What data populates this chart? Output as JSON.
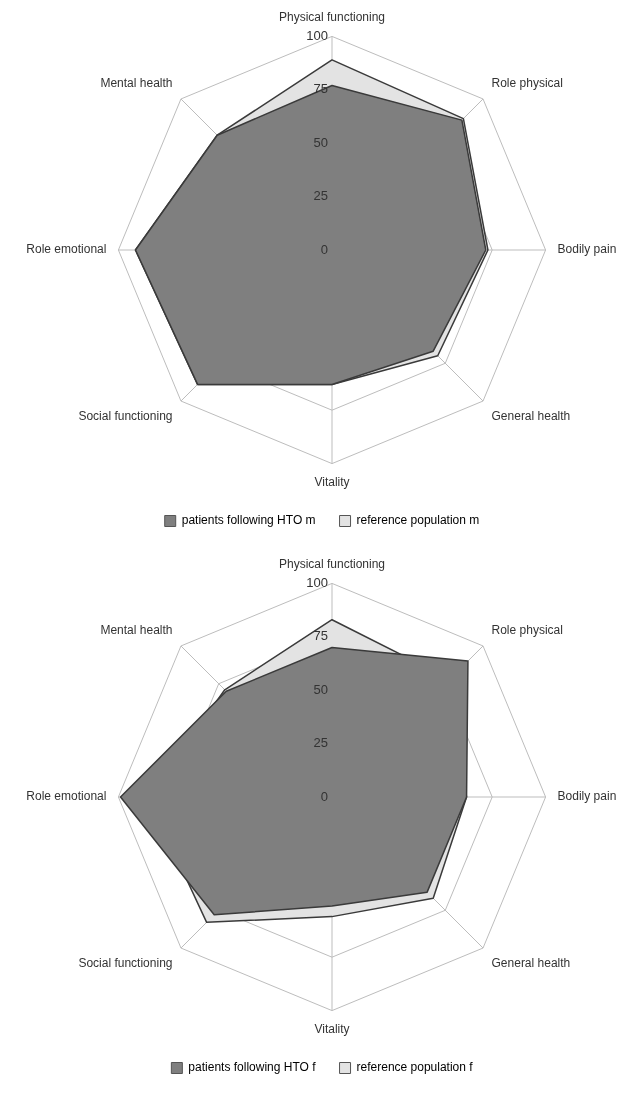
{
  "chart_data": [
    {
      "type": "radar",
      "categories": [
        "Physical functioning",
        "Role physical",
        "Bodily pain",
        "General health",
        "Vitality",
        "Social functioning",
        "Role emotional",
        "Mental health"
      ],
      "ylim": [
        0,
        100
      ],
      "yticks": [
        0,
        25,
        50,
        75,
        100
      ],
      "grid": true,
      "legend": "bottom",
      "marker": "none",
      "series": [
        {
          "name": "patients following HTO m",
          "color": "#7f7f7f",
          "values": [
            77,
            86,
            72,
            67,
            63,
            89,
            92,
            76
          ]
        },
        {
          "name": "reference population m",
          "color": "#e3e3e3",
          "values": [
            89,
            87,
            73,
            70,
            63,
            89,
            92,
            76
          ]
        }
      ]
    },
    {
      "type": "radar",
      "categories": [
        "Physical functioning",
        "Role physical",
        "Bodily pain",
        "General health",
        "Vitality",
        "Social functioning",
        "Role emotional",
        "Mental health"
      ],
      "ylim": [
        0,
        100
      ],
      "yticks": [
        0,
        25,
        50,
        75,
        100
      ],
      "grid": true,
      "legend": "bottom",
      "marker": "none",
      "series": [
        {
          "name": "patients following HTO f",
          "color": "#7f7f7f",
          "values": [
            70,
            90,
            63,
            63,
            51,
            78,
            99,
            70
          ]
        },
        {
          "name": "reference population f",
          "color": "#e3e3e3",
          "values": [
            83,
            78,
            63,
            67,
            56,
            83,
            86,
            71
          ]
        }
      ]
    }
  ]
}
